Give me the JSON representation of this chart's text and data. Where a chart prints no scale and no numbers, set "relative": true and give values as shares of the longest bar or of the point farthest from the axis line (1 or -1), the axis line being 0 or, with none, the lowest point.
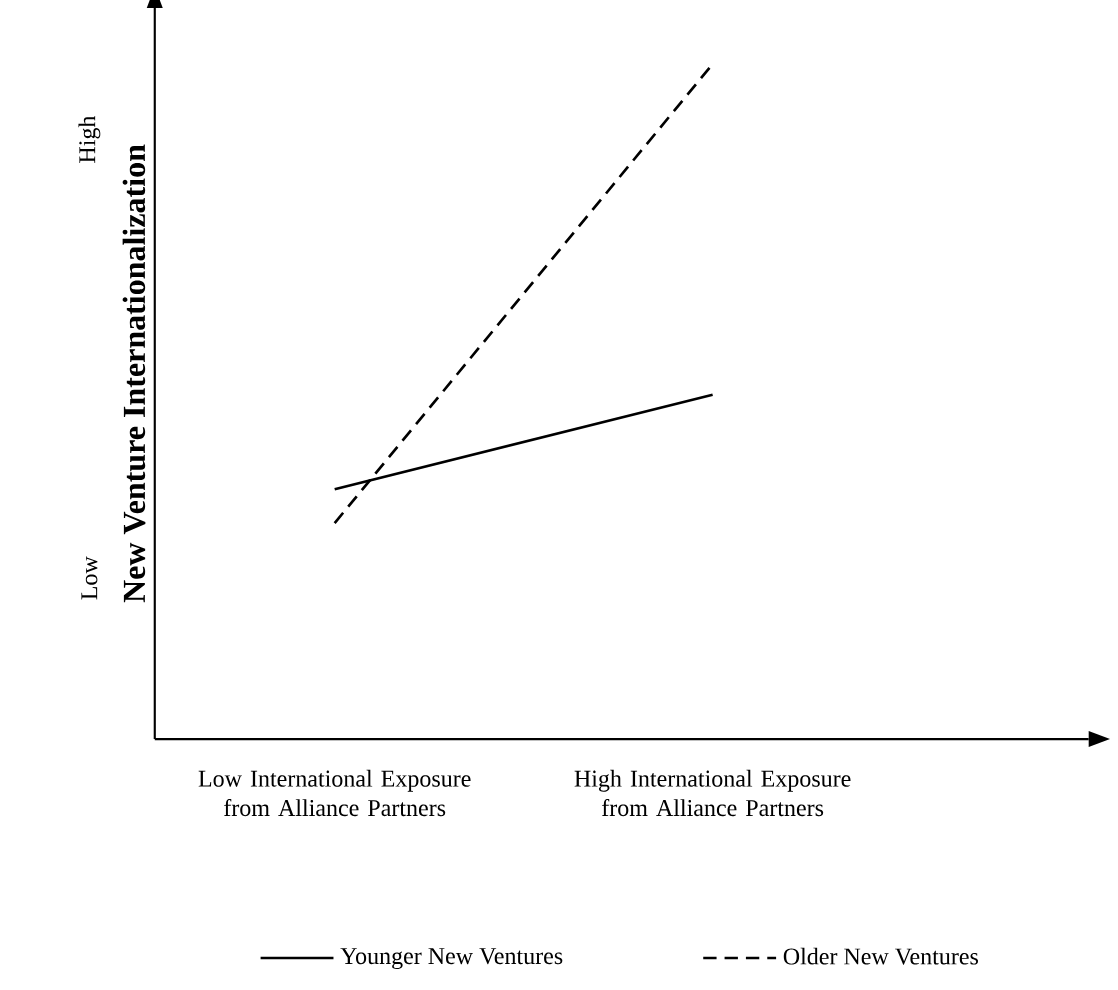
{
  "chart_data": {
    "type": "line",
    "relative": true,
    "ylabel": "New Venture Internationalization",
    "categories": [
      "Low International Exposure from Alliance Partners",
      "High International Exposure from Alliance Partners"
    ],
    "series": [
      {
        "name": "Younger New Ventures",
        "color": "#000000",
        "line_style": "solid",
        "values": [
          0.37,
          0.51
        ]
      },
      {
        "name": "Older New Ventures",
        "color": "#000000",
        "line_style": "dashed",
        "values": [
          0.32,
          1
        ]
      }
    ],
    "annotations": [
      "Low",
      "High"
    ],
    "legend": "bottom",
    "marker": "none"
  }
}
